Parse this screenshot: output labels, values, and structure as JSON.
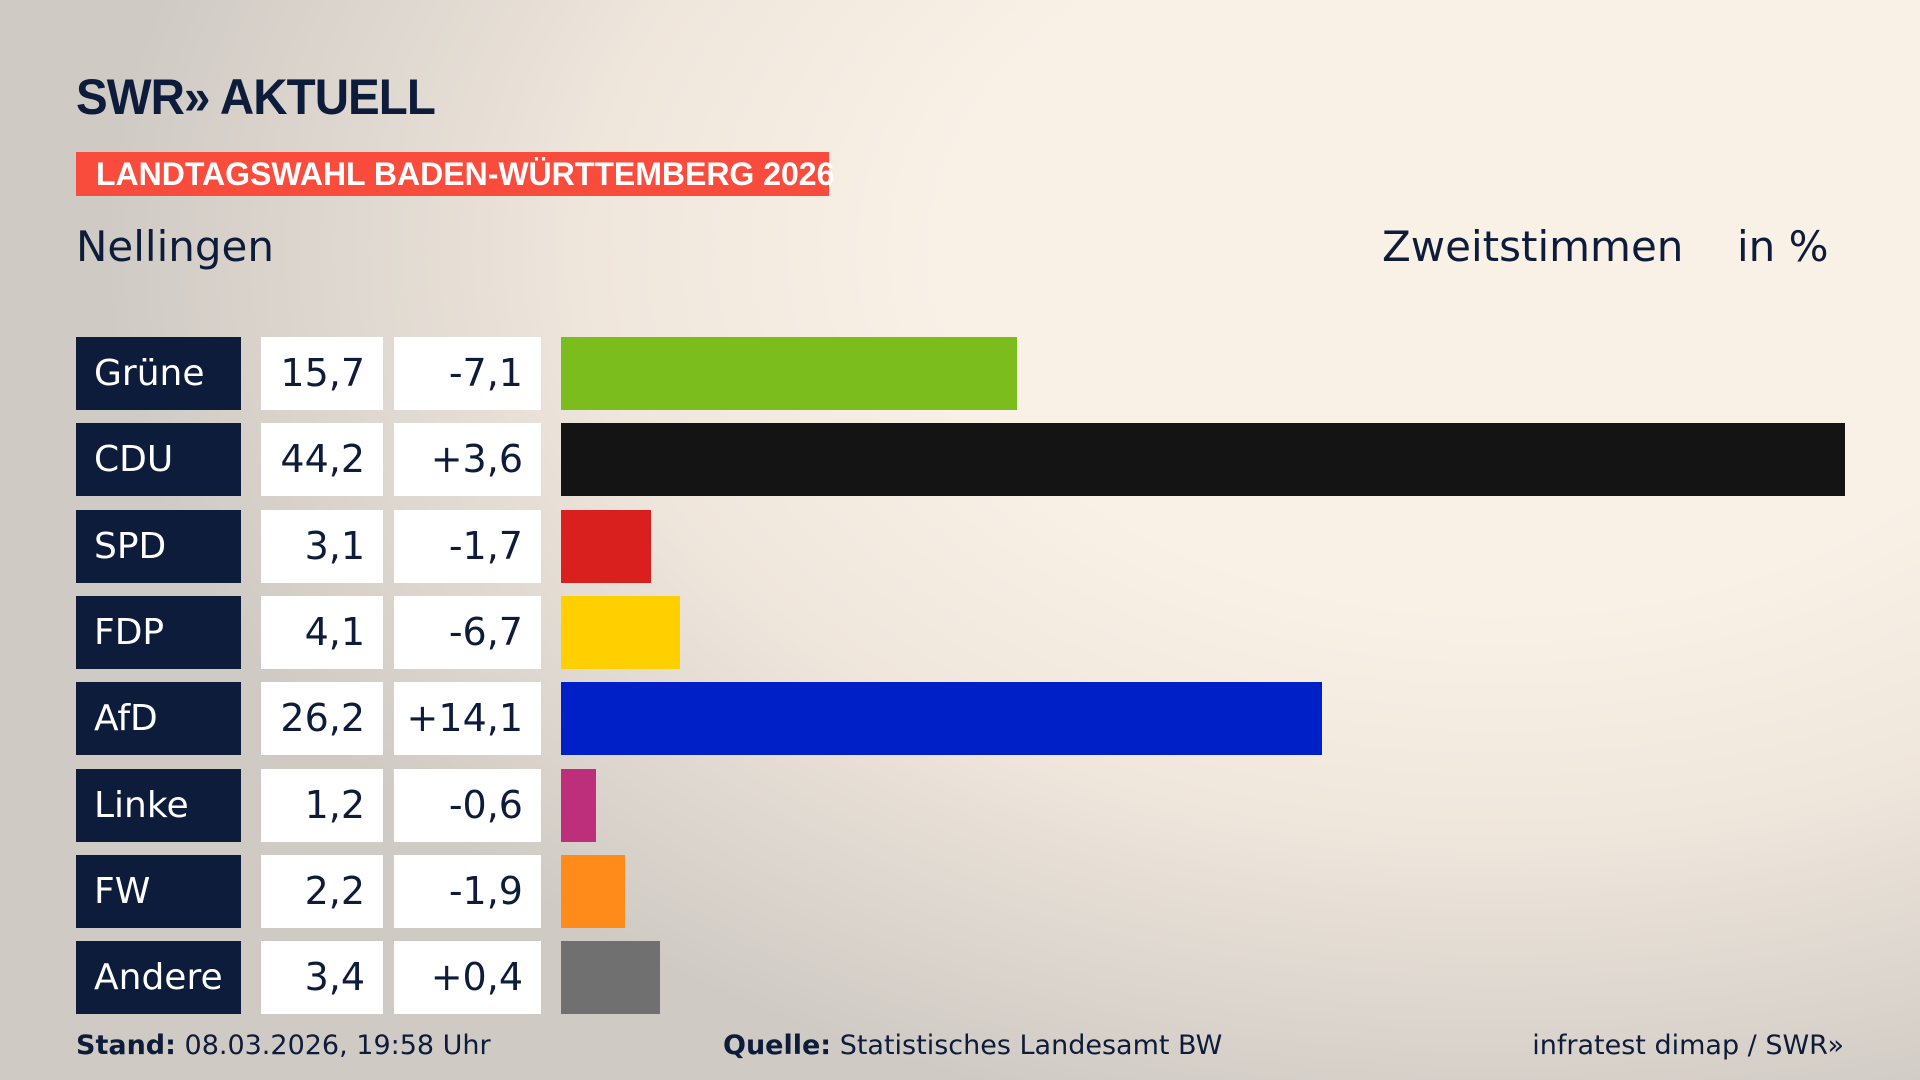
{
  "header": {
    "logo": "SWR» AKTUELL",
    "banner": "LANDTAGSWAHL BADEN-WÜRTTEMBERG 2026",
    "place": "Nellingen",
    "measure": "Zweitstimmen",
    "unit": "in %"
  },
  "chart_data": {
    "type": "bar",
    "orientation": "horizontal",
    "categories": [
      "Grüne",
      "CDU",
      "SPD",
      "FDP",
      "AfD",
      "Linke",
      "FW",
      "Andere"
    ],
    "values": [
      "15,7",
      "44,2",
      "3,1",
      "4,1",
      "26,2",
      "1,2",
      "2,2",
      "3,4"
    ],
    "numeric_values": [
      15.7,
      44.2,
      3.1,
      4.1,
      26.2,
      1.2,
      2.2,
      3.4
    ],
    "differences": [
      "-7,1",
      "+3,6",
      "-1,7",
      "-6,7",
      "+14,1",
      "-0,6",
      "-1,9",
      "+0,4"
    ],
    "colors": [
      "#7bbd1d",
      "#141414",
      "#d9201f",
      "#ffcf00",
      "#0020c7",
      "#bd2f7a",
      "#ff8c1a",
      "#707070"
    ]
  },
  "footer": {
    "stand_label": "Stand:",
    "stand_value": "08.03.2026, 19:58 Uhr",
    "source_label": "Quelle:",
    "source_value": "Statistisches Landesamt BW",
    "credit": "infratest dimap / SWR»"
  }
}
